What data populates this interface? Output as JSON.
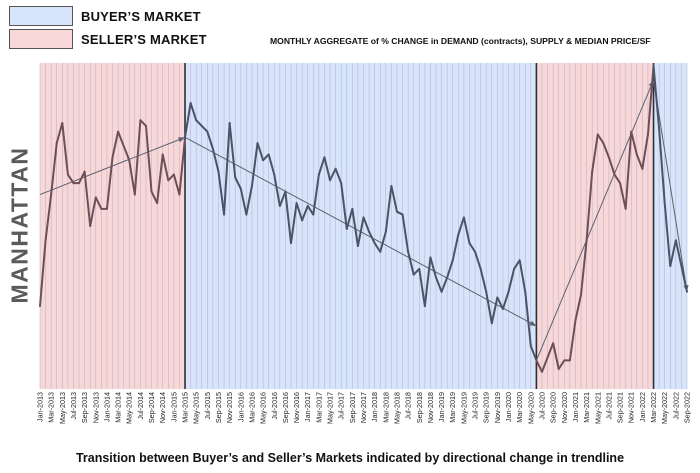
{
  "legend": {
    "buyer": {
      "label": "BUYER’S MARKET",
      "color": "#d8e4fb"
    },
    "seller": {
      "label": "SELLER’S MARKET",
      "color": "#f8d7d9"
    }
  },
  "title": "MONTHLY AGGREGATE of % CHANGE in DEMAND (contracts), SUPPLY & MEDIAN PRICE/SF",
  "side_label": "MANHATTAN",
  "caption": "Transition between Buyer’s and Seller’s Markets indicated by directional change in trendline",
  "chart_data": {
    "type": "line",
    "title": "MONTHLY AGGREGATE of % CHANGE in DEMAND (contracts), SUPPLY & MEDIAN PRICE/SF",
    "xlabel": "",
    "ylabel": "MANHATTAN",
    "y_axis": "no tick labels shown",
    "x_start": "2013-01",
    "x_end": "2022-09",
    "tick_labels": [
      "Jan-2013",
      "Mar-2013",
      "May-2013",
      "Jul-2013",
      "Sep-2013",
      "Nov-2013",
      "Jan-2014",
      "Mar-2014",
      "May-2014",
      "Jul-2014",
      "Sep-2014",
      "Nov-2014",
      "Jan-2015",
      "Mar-2015",
      "May-2015",
      "Jul-2015",
      "Sep-2015",
      "Nov-2015",
      "Jan-2016",
      "Mar-2016",
      "May-2016",
      "Jul-2016",
      "Sep-2016",
      "Nov-2016",
      "Jan-2017",
      "Mar-2017",
      "May-2017",
      "Jul-2017",
      "Sep-2017",
      "Nov-2017",
      "Jan-2018",
      "Mar-2018",
      "May-2018",
      "Jul-2018",
      "Sep-2018",
      "Nov-2018",
      "Jan-2019",
      "Mar-2019",
      "May-2019",
      "Jul-2019",
      "Sep-2019",
      "Nov-2019",
      "Jan-2020",
      "Mar-2020",
      "May-2020",
      "Jul-2020",
      "Sep-2020",
      "Nov-2020",
      "Jan-2021",
      "Mar-2021",
      "May-2021",
      "Jul-2021",
      "Sep-2021",
      "Nov-2021",
      "Jan-2022",
      "Mar-2022",
      "May-2022",
      "Jul-2022",
      "Sep-2022"
    ],
    "regimes": [
      {
        "market": "seller",
        "start": "2013-01",
        "end": "2015-03"
      },
      {
        "market": "buyer",
        "start": "2015-03",
        "end": "2020-06"
      },
      {
        "market": "seller",
        "start": "2020-06",
        "end": "2022-03"
      },
      {
        "market": "buyer",
        "start": "2022-03",
        "end": "2022-09"
      }
    ],
    "series": [
      {
        "color": "#4a5468",
        "points": [
          [
            "2013-01",
            21
          ],
          [
            "2013-02",
            44
          ],
          [
            "2013-03",
            60
          ],
          [
            "2013-04",
            78
          ],
          [
            "2013-05",
            85
          ],
          [
            "2013-06",
            67
          ],
          [
            "2013-07",
            64
          ],
          [
            "2013-08",
            64
          ],
          [
            "2013-09",
            68
          ],
          [
            "2013-10",
            49
          ],
          [
            "2013-11",
            59
          ],
          [
            "2013-12",
            55
          ],
          [
            "2014-01",
            55
          ],
          [
            "2014-02",
            73
          ],
          [
            "2014-03",
            82
          ],
          [
            "2014-04",
            77
          ],
          [
            "2014-05",
            72
          ],
          [
            "2014-06",
            60
          ],
          [
            "2014-07",
            86
          ],
          [
            "2014-08",
            84
          ],
          [
            "2014-09",
            61
          ],
          [
            "2014-10",
            57
          ],
          [
            "2014-11",
            74
          ],
          [
            "2014-12",
            65
          ],
          [
            "2015-01",
            67
          ],
          [
            "2015-02",
            60
          ],
          [
            "2015-03",
            80
          ],
          [
            "2015-04",
            92
          ],
          [
            "2015-05",
            86
          ],
          [
            "2015-06",
            84
          ],
          [
            "2015-07",
            82
          ],
          [
            "2015-08",
            76
          ],
          [
            "2015-09",
            68
          ],
          [
            "2015-10",
            53
          ],
          [
            "2015-11",
            85
          ],
          [
            "2015-12",
            66
          ],
          [
            "2016-01",
            62
          ],
          [
            "2016-02",
            53
          ],
          [
            "2016-03",
            63
          ],
          [
            "2016-04",
            78
          ],
          [
            "2016-05",
            72
          ],
          [
            "2016-06",
            74
          ],
          [
            "2016-07",
            67
          ],
          [
            "2016-08",
            56
          ],
          [
            "2016-09",
            61
          ],
          [
            "2016-10",
            43
          ],
          [
            "2016-11",
            57
          ],
          [
            "2016-12",
            51
          ],
          [
            "2017-01",
            56
          ],
          [
            "2017-02",
            53
          ],
          [
            "2017-03",
            67
          ],
          [
            "2017-04",
            73
          ],
          [
            "2017-05",
            65
          ],
          [
            "2017-06",
            69
          ],
          [
            "2017-07",
            64
          ],
          [
            "2017-08",
            48
          ],
          [
            "2017-09",
            55
          ],
          [
            "2017-10",
            42
          ],
          [
            "2017-11",
            52
          ],
          [
            "2017-12",
            47
          ],
          [
            "2018-01",
            43
          ],
          [
            "2018-02",
            40
          ],
          [
            "2018-03",
            47
          ],
          [
            "2018-04",
            63
          ],
          [
            "2018-05",
            54
          ],
          [
            "2018-06",
            53
          ],
          [
            "2018-07",
            40
          ],
          [
            "2018-08",
            32
          ],
          [
            "2018-09",
            34
          ],
          [
            "2018-10",
            21
          ],
          [
            "2018-11",
            38
          ],
          [
            "2018-12",
            31
          ],
          [
            "2019-01",
            26
          ],
          [
            "2019-02",
            31
          ],
          [
            "2019-03",
            37
          ],
          [
            "2019-04",
            46
          ],
          [
            "2019-05",
            52
          ],
          [
            "2019-06",
            43
          ],
          [
            "2019-07",
            40
          ],
          [
            "2019-08",
            34
          ],
          [
            "2019-09",
            26
          ],
          [
            "2019-10",
            15
          ],
          [
            "2019-11",
            24
          ],
          [
            "2019-12",
            20
          ],
          [
            "2020-01",
            26
          ],
          [
            "2020-02",
            34
          ],
          [
            "2020-03",
            37
          ],
          [
            "2020-04",
            26
          ],
          [
            "2020-05",
            7
          ],
          [
            "2020-06",
            2
          ],
          [
            "2020-07",
            -2
          ],
          [
            "2020-08",
            3
          ],
          [
            "2020-09",
            8
          ],
          [
            "2020-10",
            -1
          ],
          [
            "2020-11",
            2
          ],
          [
            "2020-12",
            2
          ],
          [
            "2021-01",
            16
          ],
          [
            "2021-02",
            25
          ],
          [
            "2021-03",
            44
          ],
          [
            "2021-04",
            68
          ],
          [
            "2021-05",
            81
          ],
          [
            "2021-06",
            78
          ],
          [
            "2021-07",
            73
          ],
          [
            "2021-08",
            67
          ],
          [
            "2021-09",
            64
          ],
          [
            "2021-10",
            55
          ],
          [
            "2021-11",
            82
          ],
          [
            "2021-12",
            74
          ],
          [
            "2022-01",
            69
          ],
          [
            "2022-02",
            81
          ],
          [
            "2022-03",
            105
          ],
          [
            "2022-04",
            83
          ],
          [
            "2022-05",
            57
          ],
          [
            "2022-06",
            35
          ],
          [
            "2022-07",
            44
          ],
          [
            "2022-08",
            35
          ],
          [
            "2022-09",
            26
          ]
        ]
      }
    ],
    "trendlines": [
      {
        "from": [
          "2013-01",
          60
        ],
        "to": [
          "2015-03",
          80
        ]
      },
      {
        "from": [
          "2015-03",
          80
        ],
        "to": [
          "2020-06",
          14
        ]
      },
      {
        "from": [
          "2020-06",
          2
        ],
        "to": [
          "2022-03",
          100
        ]
      },
      {
        "from": [
          "2022-03",
          100
        ],
        "to": [
          "2022-09",
          26
        ]
      }
    ],
    "grid": "vertical lines at every month"
  }
}
